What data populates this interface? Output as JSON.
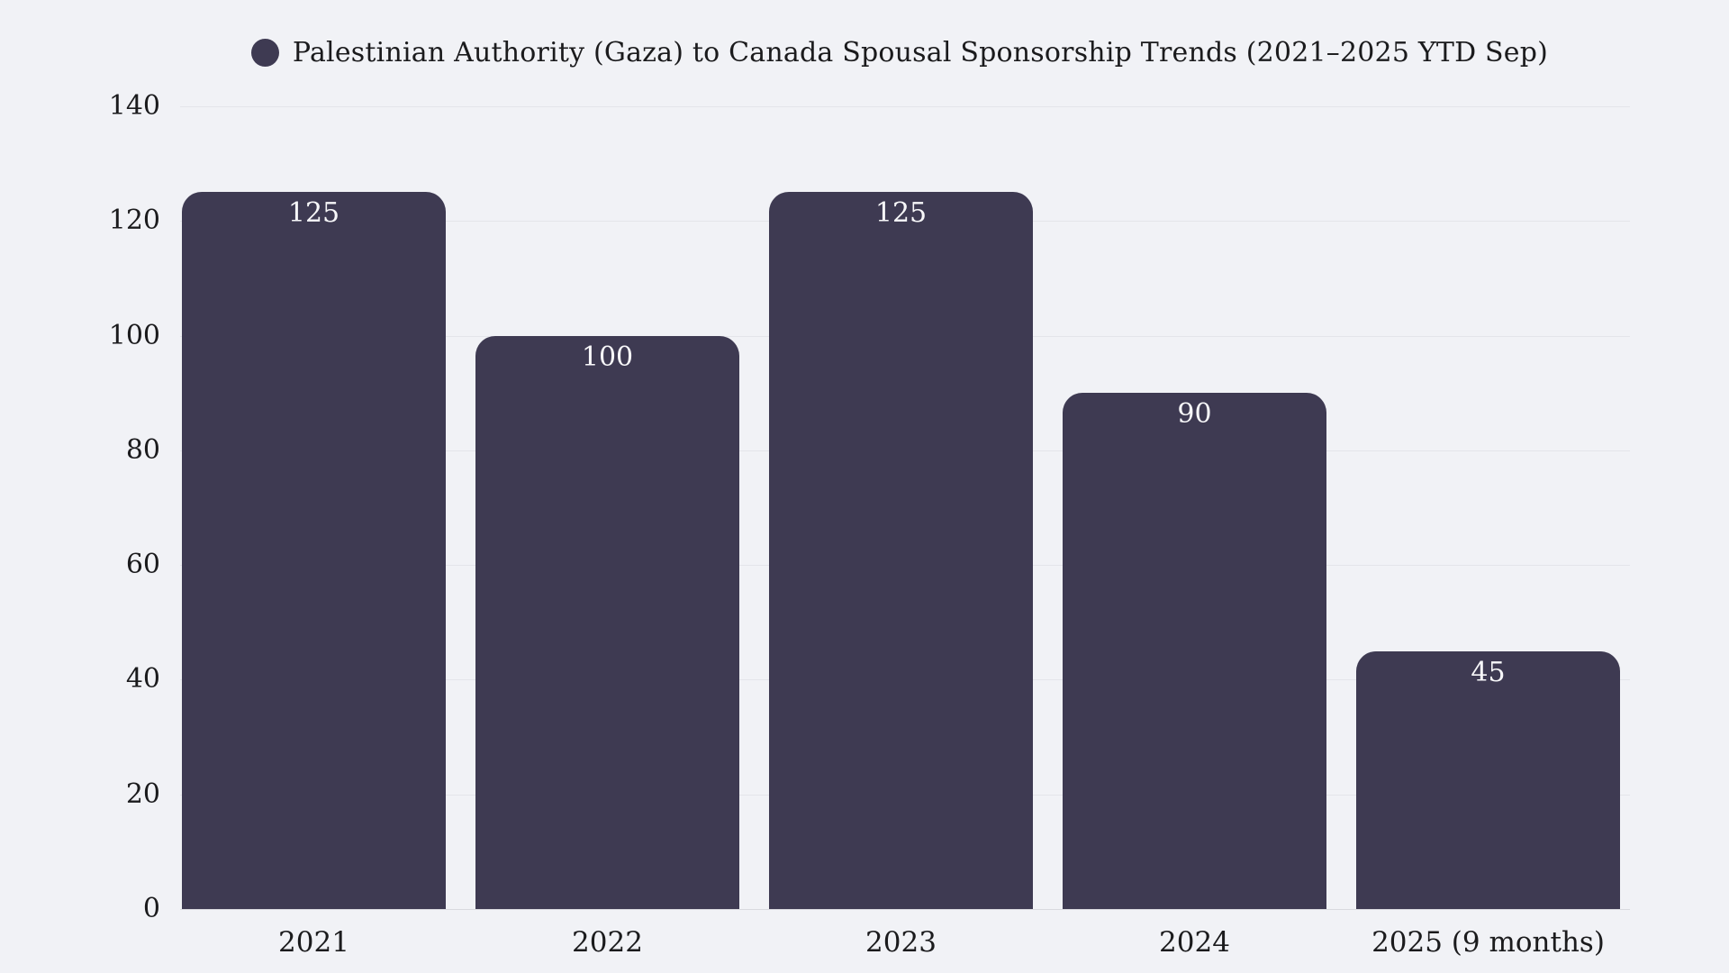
{
  "chart_data": {
    "type": "bar",
    "title": "Palestinian Authority (Gaza) to Canada Spousal Sponsorship Trends (2021–2025 YTD Sep)",
    "legend_entries": [
      "Palestinian Authority (Gaza) to Canada Spousal Sponsorship Trends (2021–2025 YTD Sep)"
    ],
    "legend_position": "top-center",
    "categories": [
      "2021",
      "2022",
      "2023",
      "2024",
      "2025 (9 months)"
    ],
    "values": [
      125,
      100,
      125,
      90,
      45
    ],
    "value_labels": [
      "125",
      "100",
      "125",
      "90",
      "45"
    ],
    "value_label_position": "inside-top",
    "xlabel": "",
    "ylabel": "",
    "ylim": [
      0,
      140
    ],
    "y_ticks": [
      0,
      20,
      40,
      60,
      80,
      100,
      120,
      140
    ],
    "grid": "horizontal",
    "colors": {
      "background": "#f1f2f6",
      "bar": "#3e3a52",
      "bar_value_text": "#f7f7f9",
      "axis_text": "#1b1b1d",
      "gridline": "#e4e5ea",
      "baseline": "#d9dadf"
    }
  }
}
